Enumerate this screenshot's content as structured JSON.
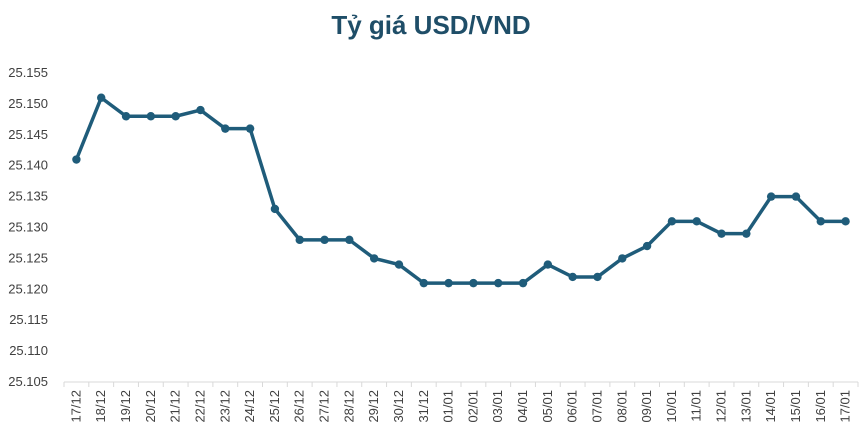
{
  "colors": {
    "series": "#1F5C7A",
    "title": "#1F4E68",
    "axis": "#D9D9D9"
  },
  "chart_data": {
    "type": "line",
    "title": "Tỷ giá USD/VND",
    "xlabel": "",
    "ylabel": "",
    "grid": false,
    "ylim": [
      25105,
      25155
    ],
    "y_ticks": [
      "25.105",
      "25.110",
      "25.115",
      "25.120",
      "25.125",
      "25.130",
      "25.135",
      "25.140",
      "25.145",
      "25.150",
      "25.155"
    ],
    "categories": [
      "17/12",
      "18/12",
      "19/12",
      "20/12",
      "21/12",
      "22/12",
      "23/12",
      "24/12",
      "25/12",
      "26/12",
      "27/12",
      "28/12",
      "29/12",
      "30/12",
      "31/12",
      "01/01",
      "02/01",
      "03/01",
      "04/01",
      "05/01",
      "06/01",
      "07/01",
      "08/01",
      "09/01",
      "10/01",
      "11/01",
      "12/01",
      "13/01",
      "14/01",
      "15/01",
      "16/01",
      "17/01"
    ],
    "series": [
      {
        "values": [
          25141,
          25151,
          25148,
          25148,
          25148,
          25149,
          25146,
          25146,
          25133,
          25128,
          25128,
          25128,
          25125,
          25124,
          25121,
          25121,
          25121,
          25121,
          25121,
          25124,
          25122,
          25122,
          25125,
          25127,
          25131,
          25131,
          25129,
          25129,
          25135,
          25135,
          25131,
          25131
        ]
      }
    ]
  }
}
